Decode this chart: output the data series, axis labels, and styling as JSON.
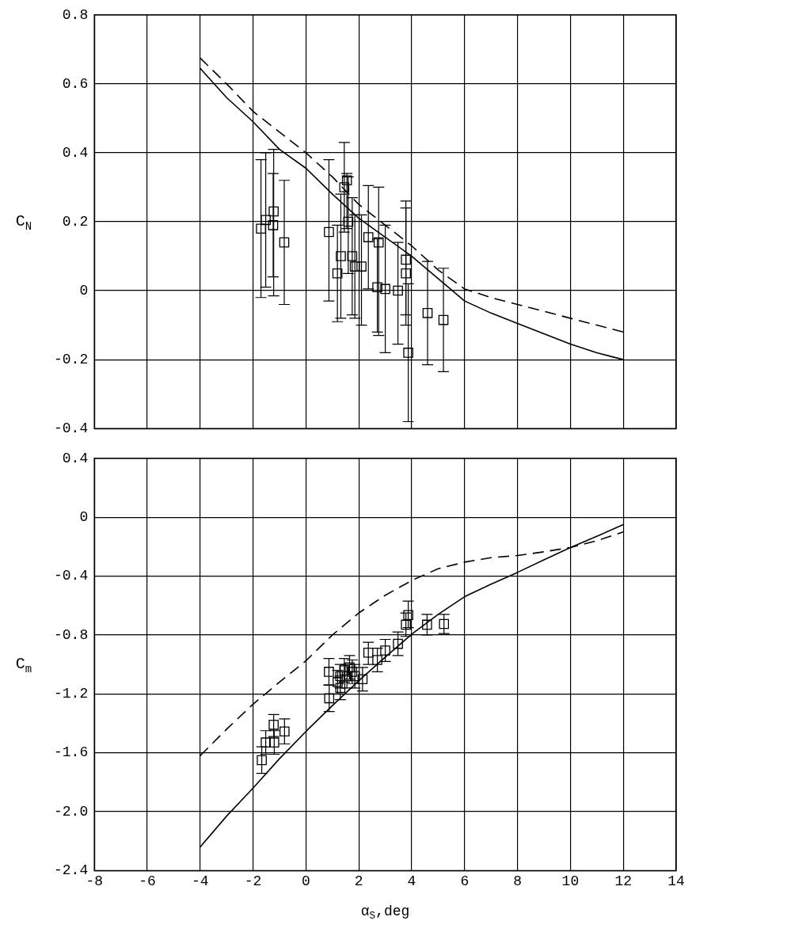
{
  "chart_data": [
    {
      "type": "scatter",
      "ylabel": "C$_{N}$",
      "xlim": [
        -8,
        14
      ],
      "xticks": [
        -8,
        -6,
        -4,
        -2,
        0,
        2,
        4,
        6,
        8,
        10,
        12,
        14
      ],
      "ylim": [
        -0.4,
        0.8
      ],
      "yticks": [
        -0.4,
        -0.2,
        0,
        0.2,
        0.4,
        0.6,
        0.8
      ],
      "grid": true,
      "legend": false,
      "tick_labels": "y",
      "series": [
        {
          "type": "scatter",
          "color": "#000000",
          "marker": "square",
          "x": [
            -1.7,
            -1.52,
            -1.22,
            -1.24,
            -0.82,
            0.87,
            1.19,
            1.32,
            1.45,
            1.55,
            1.6,
            1.75,
            1.85,
            2.1,
            2.36,
            2.75,
            2.7,
            3.0,
            3.48,
            3.78,
            3.78,
            3.87,
            4.6,
            5.2
          ],
          "values": [
            0.18,
            0.205,
            0.23,
            0.19,
            0.14,
            0.17,
            0.05,
            0.1,
            0.3,
            0.32,
            0.2,
            0.1,
            0.07,
            0.07,
            0.155,
            0.14,
            0.01,
            0.005,
            0.0,
            0.09,
            0.05,
            -0.18,
            -0.065,
            -0.085
          ],
          "errors": [
            [
              -0.02,
              0.38
            ],
            [
              0.01,
              0.4
            ],
            [
              -0.015,
              0.41
            ],
            [
              0.04,
              0.34
            ],
            [
              -0.04,
              0.32
            ],
            [
              -0.03,
              0.38
            ],
            [
              -0.09,
              0.19
            ],
            [
              -0.08,
              0.28
            ],
            [
              0.17,
              0.43
            ],
            [
              0.18,
              0.34
            ],
            [
              0.05,
              0.33
            ],
            [
              -0.07,
              0.27
            ],
            [
              -0.08,
              0.22
            ],
            [
              -0.1,
              0.22
            ],
            [
              0.005,
              0.305
            ],
            [
              -0.13,
              0.3
            ],
            [
              -0.12,
              0.15
            ],
            [
              -0.18,
              0.19
            ],
            [
              -0.155,
              0.14
            ],
            [
              -0.07,
              0.26
            ],
            [
              -0.1,
              0.24
            ],
            [
              -0.38,
              0.02
            ],
            [
              -0.215,
              0.085
            ],
            [
              -0.235,
              0.065
            ]
          ]
        },
        {
          "type": "line",
          "color": "#000000",
          "line_style": "solid",
          "x": [
            -4,
            -3,
            -2,
            -1,
            0,
            1,
            2,
            3,
            4,
            5,
            6,
            7,
            8,
            9,
            10,
            11,
            12
          ],
          "values": [
            0.645,
            0.56,
            0.49,
            0.41,
            0.355,
            0.28,
            0.21,
            0.155,
            0.1,
            0.035,
            -0.03,
            -0.065,
            -0.095,
            -0.125,
            -0.155,
            -0.18,
            -0.2
          ]
        },
        {
          "type": "line",
          "color": "#000000",
          "line_style": "dashed",
          "x": [
            -4,
            -3,
            -2,
            -1,
            0,
            1,
            2,
            3,
            4,
            5,
            6,
            7,
            8,
            9,
            10,
            11,
            12
          ],
          "values": [
            0.675,
            0.6,
            0.52,
            0.46,
            0.4,
            0.33,
            0.25,
            0.19,
            0.13,
            0.06,
            0.005,
            -0.02,
            -0.04,
            -0.06,
            -0.08,
            -0.1,
            -0.12
          ]
        }
      ]
    },
    {
      "type": "scatter",
      "xlabel": "α$_{S}$,deg",
      "ylabel": "C$_{m}$",
      "xlim": [
        -8,
        14
      ],
      "xticks": [
        -8,
        -6,
        -4,
        -2,
        0,
        2,
        4,
        6,
        8,
        10,
        12,
        14
      ],
      "ylim": [
        -2.4,
        0.4
      ],
      "yticks": [
        {
          "value": -2.4,
          "label": "-2.4"
        },
        {
          "value": -2,
          "label": "-2.0"
        },
        -1.6,
        -1.2,
        -0.8,
        -0.4,
        0,
        0.4
      ],
      "grid": true,
      "legend": false,
      "series": [
        {
          "type": "scatter",
          "color": "#000000",
          "marker": "square",
          "x": [
            -1.67,
            -1.52,
            -1.22,
            -1.2,
            -0.81,
            0.88,
            0.87,
            1.2,
            1.3,
            1.3,
            1.45,
            1.55,
            1.65,
            1.75,
            1.85,
            2.14,
            2.36,
            2.7,
            3.0,
            3.48,
            3.78,
            3.87,
            4.58,
            5.22
          ],
          "values": [
            -1.65,
            -1.53,
            -1.41,
            -1.53,
            -1.455,
            -1.23,
            -1.05,
            -1.12,
            -1.08,
            -1.16,
            -1.04,
            -1.08,
            -1.02,
            -1.05,
            -1.08,
            -1.1,
            -0.92,
            -0.97,
            -0.905,
            -0.86,
            -0.73,
            -0.665,
            -0.73,
            -0.725
          ],
          "errors": [
            [
              -1.74,
              -1.56
            ],
            [
              -1.61,
              -1.45
            ],
            [
              -1.49,
              -1.34
            ],
            [
              -1.61,
              -1.45
            ],
            [
              -1.54,
              -1.37
            ],
            [
              -1.32,
              -1.14
            ],
            [
              -1.14,
              -0.96
            ],
            [
              -1.2,
              -1.04
            ],
            [
              -1.16,
              -1.0
            ],
            [
              -1.24,
              -1.08
            ],
            [
              -1.12,
              -0.96
            ],
            [
              -1.16,
              -1.0
            ],
            [
              -1.1,
              -0.94
            ],
            [
              -1.13,
              -0.97
            ],
            [
              -1.16,
              -1.0
            ],
            [
              -1.18,
              -1.02
            ],
            [
              -1.0,
              -0.85
            ],
            [
              -1.05,
              -0.89
            ],
            [
              -0.98,
              -0.83
            ],
            [
              -0.94,
              -0.78
            ],
            [
              -0.81,
              -0.65
            ],
            [
              -0.75,
              -0.57
            ],
            [
              -0.8,
              -0.66
            ],
            [
              -0.79,
              -0.66
            ]
          ]
        },
        {
          "type": "line",
          "color": "#000000",
          "line_style": "solid",
          "x": [
            -4,
            -3,
            -2,
            -1,
            0,
            1,
            2,
            3,
            4,
            5,
            6,
            7,
            8,
            9,
            10,
            11,
            12
          ],
          "values": [
            -2.24,
            -2.03,
            -1.84,
            -1.64,
            -1.455,
            -1.28,
            -1.11,
            -0.95,
            -0.795,
            -0.66,
            -0.54,
            -0.455,
            -0.375,
            -0.29,
            -0.206,
            -0.13,
            -0.05
          ]
        },
        {
          "type": "line",
          "color": "#000000",
          "line_style": "dashed",
          "x": [
            -4,
            -3,
            -2,
            -1,
            0,
            1,
            2,
            3,
            4,
            5,
            6,
            7,
            8,
            9,
            10,
            11,
            12
          ],
          "values": [
            -1.62,
            -1.44,
            -1.27,
            -1.12,
            -0.975,
            -0.8,
            -0.65,
            -0.53,
            -0.43,
            -0.35,
            -0.305,
            -0.275,
            -0.26,
            -0.235,
            -0.206,
            -0.16,
            -0.1
          ]
        }
      ]
    }
  ]
}
